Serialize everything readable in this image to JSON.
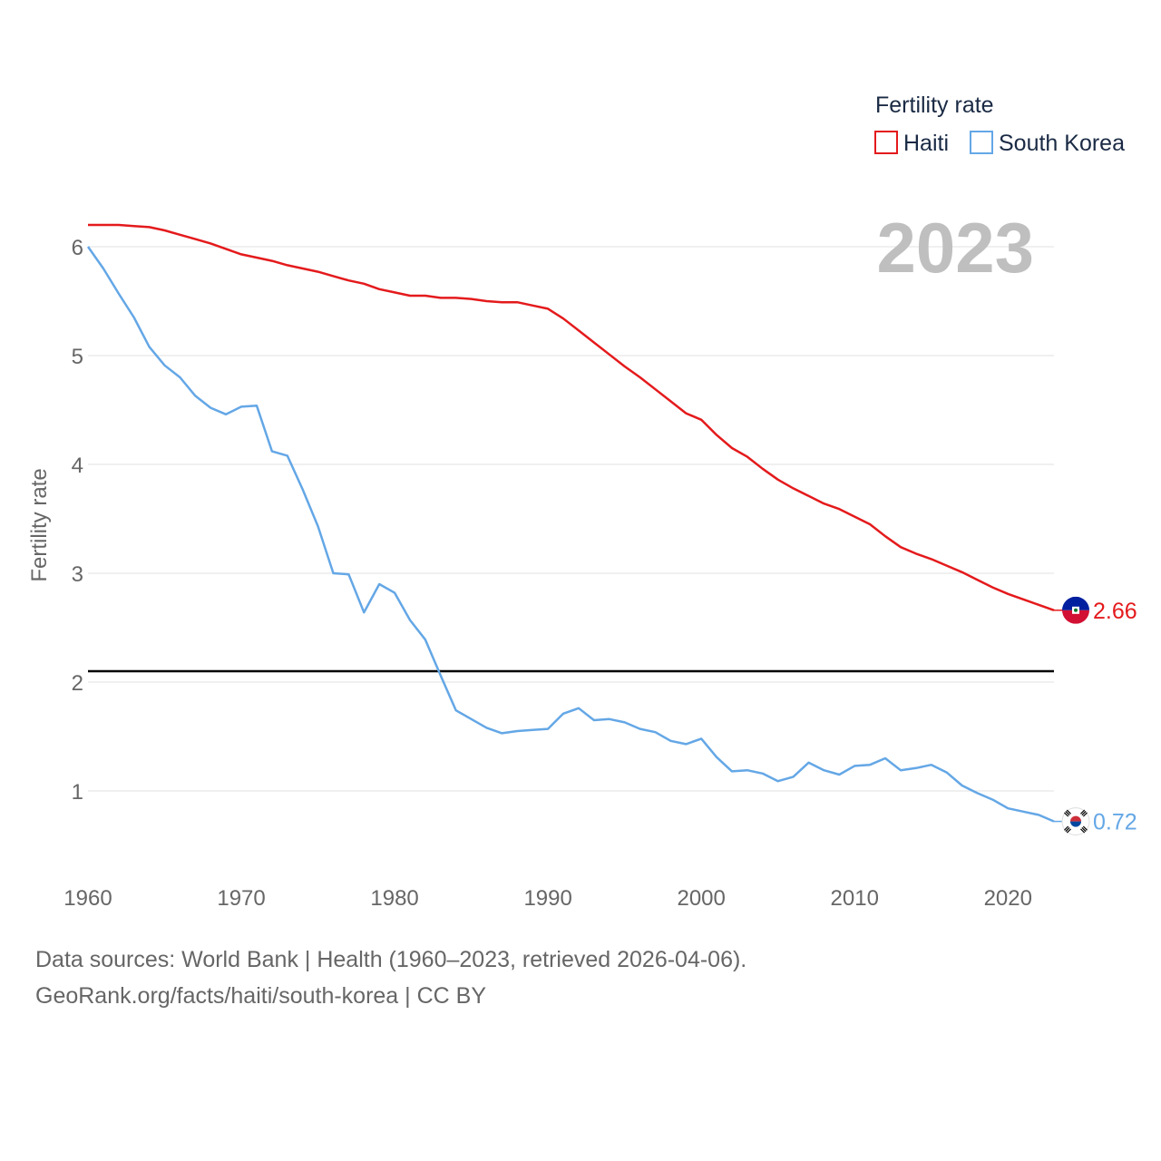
{
  "chart_data": {
    "type": "line",
    "title": "",
    "xlabel": "",
    "ylabel": "Fertility rate",
    "xlim": [
      1960,
      2023
    ],
    "ylim": [
      0.35,
      6.6
    ],
    "yticks": [
      1,
      2,
      3,
      4,
      5,
      6
    ],
    "xticks": [
      1960,
      1970,
      1980,
      1990,
      2000,
      2010,
      2020
    ],
    "grid": true,
    "legend": {
      "title": "Fertility rate",
      "position": "top-right"
    },
    "year_label": "2023",
    "reference_line": {
      "y": 2.1,
      "color": "#000000"
    },
    "x": [
      1960,
      1961,
      1962,
      1963,
      1964,
      1965,
      1966,
      1967,
      1968,
      1969,
      1970,
      1971,
      1972,
      1973,
      1974,
      1975,
      1976,
      1977,
      1978,
      1979,
      1980,
      1981,
      1982,
      1983,
      1984,
      1985,
      1986,
      1987,
      1988,
      1989,
      1990,
      1991,
      1992,
      1993,
      1994,
      1995,
      1996,
      1997,
      1998,
      1999,
      2000,
      2001,
      2002,
      2003,
      2004,
      2005,
      2006,
      2007,
      2008,
      2009,
      2010,
      2011,
      2012,
      2013,
      2014,
      2015,
      2016,
      2017,
      2018,
      2019,
      2020,
      2021,
      2022,
      2023
    ],
    "series": [
      {
        "name": "Haiti",
        "color": "#e41a1c",
        "end_label": "2.66",
        "values": [
          6.2,
          6.2,
          6.2,
          6.19,
          6.18,
          6.15,
          6.11,
          6.07,
          6.03,
          5.98,
          5.93,
          5.9,
          5.87,
          5.83,
          5.8,
          5.77,
          5.73,
          5.69,
          5.66,
          5.61,
          5.58,
          5.55,
          5.55,
          5.53,
          5.53,
          5.52,
          5.5,
          5.49,
          5.49,
          5.46,
          5.43,
          5.34,
          5.23,
          5.12,
          5.01,
          4.9,
          4.8,
          4.69,
          4.58,
          4.47,
          4.41,
          4.27,
          4.15,
          4.07,
          3.96,
          3.86,
          3.78,
          3.71,
          3.64,
          3.59,
          3.52,
          3.45,
          3.34,
          3.24,
          3.18,
          3.13,
          3.07,
          3.01,
          2.94,
          2.87,
          2.81,
          2.76,
          2.71,
          2.66
        ]
      },
      {
        "name": "South Korea",
        "color": "#64a7e6",
        "end_label": "0.72",
        "values": [
          6.0,
          5.8,
          5.57,
          5.35,
          5.08,
          4.91,
          4.8,
          4.63,
          4.52,
          4.46,
          4.53,
          4.54,
          4.12,
          4.08,
          3.77,
          3.43,
          3.0,
          2.99,
          2.64,
          2.9,
          2.82,
          2.57,
          2.39,
          2.06,
          1.74,
          1.66,
          1.58,
          1.53,
          1.55,
          1.56,
          1.57,
          1.71,
          1.76,
          1.65,
          1.66,
          1.63,
          1.57,
          1.54,
          1.46,
          1.43,
          1.48,
          1.31,
          1.18,
          1.19,
          1.16,
          1.09,
          1.13,
          1.26,
          1.19,
          1.15,
          1.23,
          1.24,
          1.3,
          1.19,
          1.21,
          1.24,
          1.17,
          1.05,
          0.98,
          0.92,
          0.84,
          0.81,
          0.78,
          0.72
        ]
      }
    ]
  },
  "footer": {
    "line1": "Data sources: World Bank | Health (1960–2023, retrieved 2026-04-06).",
    "line2": "GeoRank.org/facts/haiti/south-korea | CC BY"
  },
  "colors": {
    "axis_text": "#666666",
    "grid": "#e6e6e6",
    "legend_text": "#1a2a44",
    "year_label": "#bfbfbf"
  },
  "icons": {
    "haiti_flag": "haiti-flag-icon",
    "korea_flag": "south-korea-flag-icon"
  }
}
